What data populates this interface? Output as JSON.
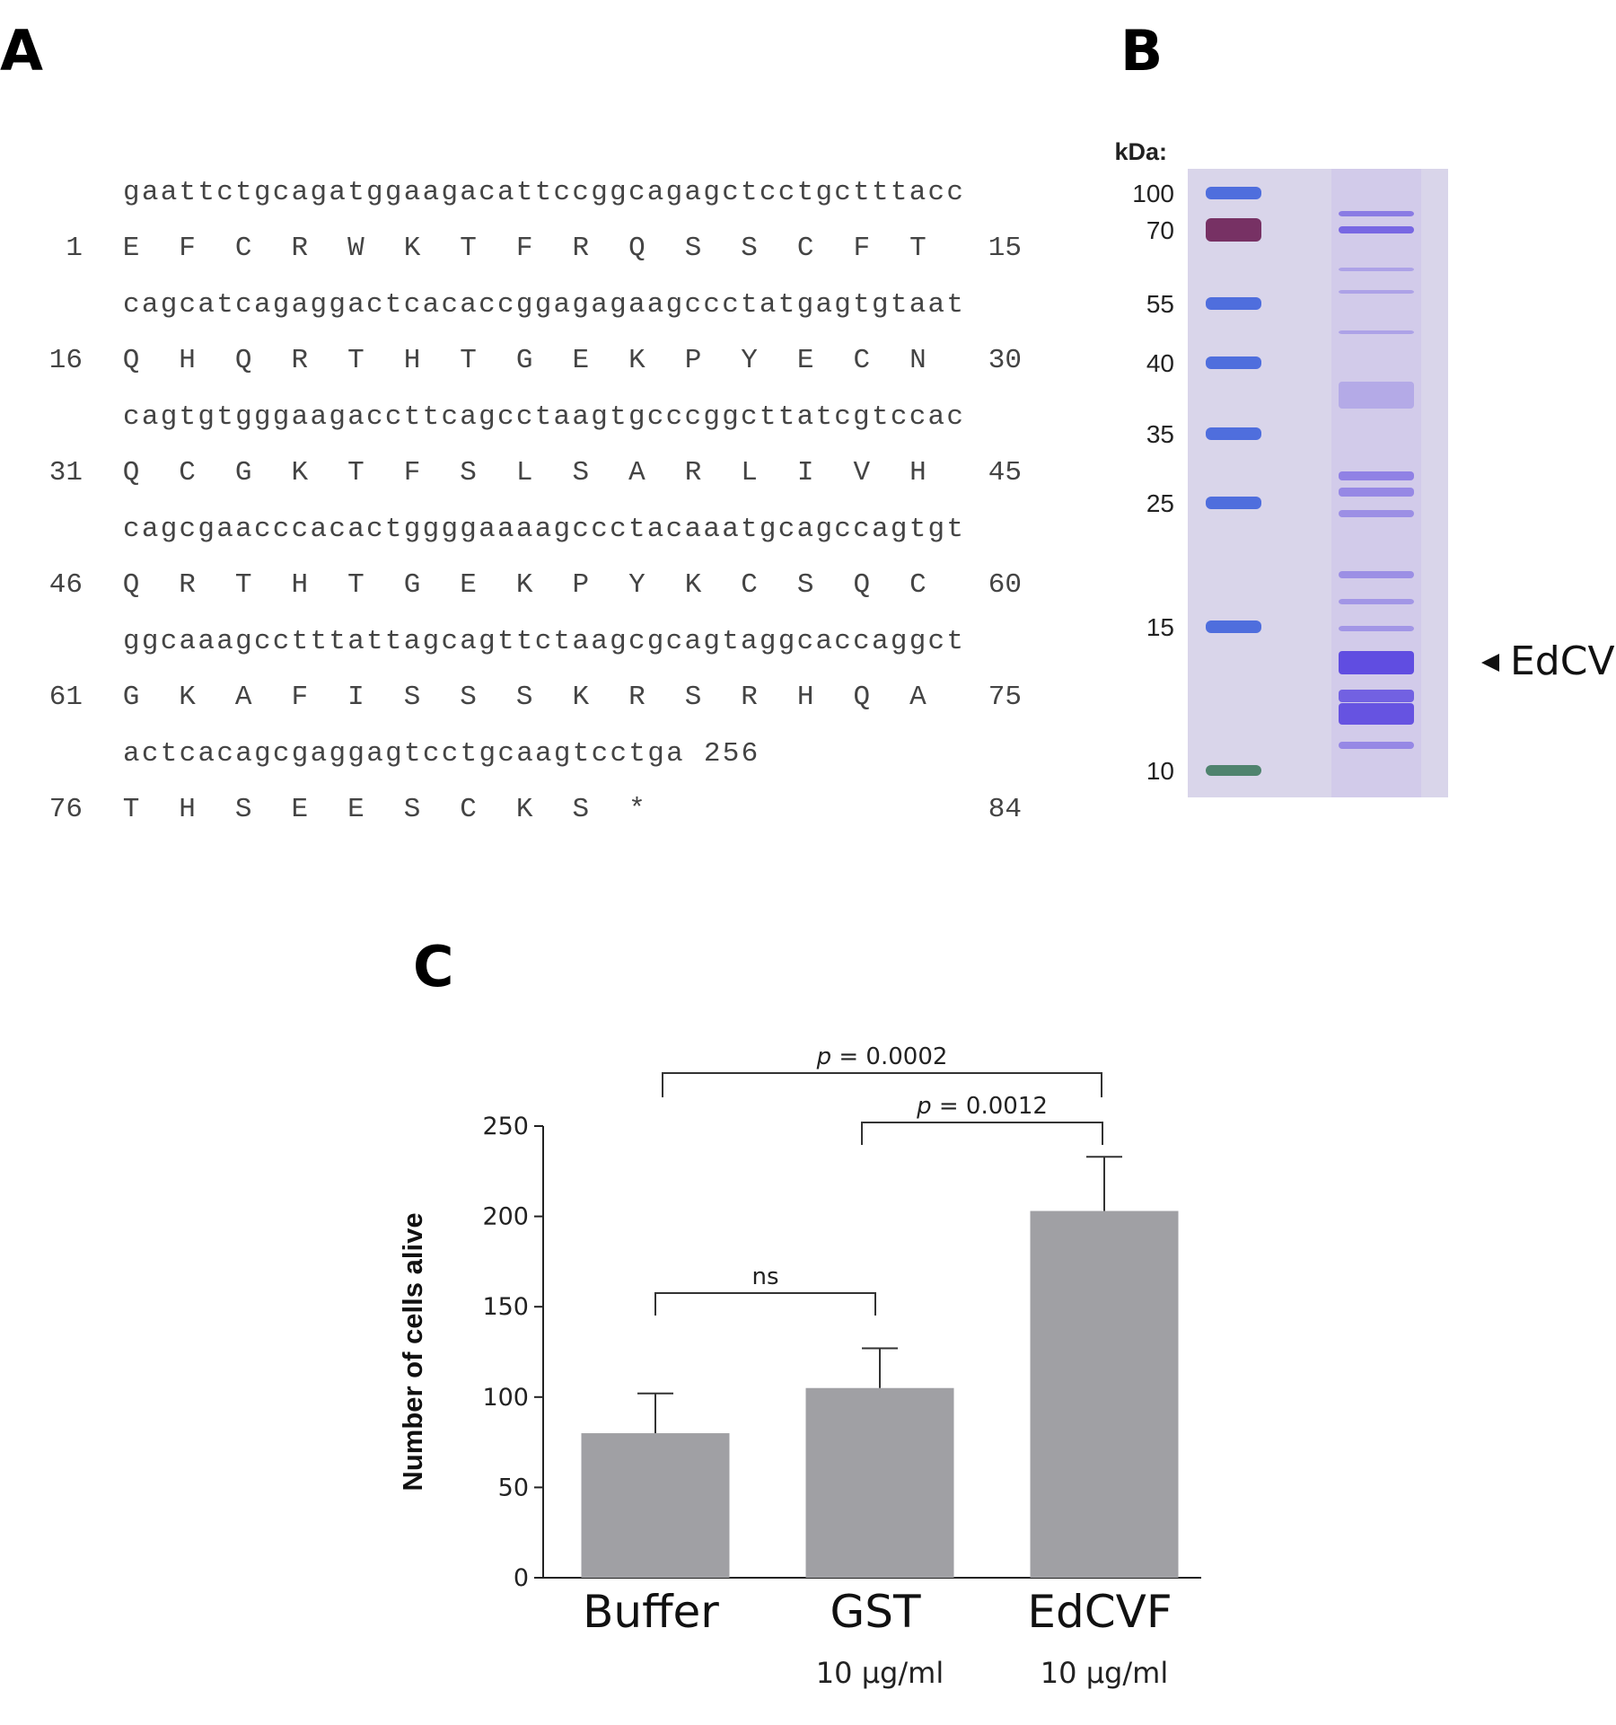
{
  "panels": {
    "a": "A",
    "b": "B",
    "c": "C"
  },
  "sequence": {
    "rows": [
      {
        "dna": "gaattctgcagatggaagacattccggcagagctcctgctttacc",
        "start": "1",
        "aa": [
          "E",
          "F",
          "C",
          "R",
          "W",
          "K",
          "T",
          "F",
          "R",
          "Q",
          "S",
          "S",
          "C",
          "F",
          "T"
        ],
        "end": "15"
      },
      {
        "dna": "cagcatcagaggactcacaccggagagaagccctatgagtgtaat",
        "start": "16",
        "aa": [
          "Q",
          "H",
          "Q",
          "R",
          "T",
          "H",
          "T",
          "G",
          "E",
          "K",
          "P",
          "Y",
          "E",
          "C",
          "N"
        ],
        "end": "30"
      },
      {
        "dna": "cagtgtgggaagaccttcagcctaagtgcccggcttatcgtccac",
        "start": "31",
        "aa": [
          "Q",
          "C",
          "G",
          "K",
          "T",
          "F",
          "S",
          "L",
          "S",
          "A",
          "R",
          "L",
          "I",
          "V",
          "H"
        ],
        "end": "45"
      },
      {
        "dna": "cagcgaacccacactggggaaaagccctacaaatgcagccagtgt",
        "start": "46",
        "aa": [
          "Q",
          "R",
          "T",
          "H",
          "T",
          "G",
          "E",
          "K",
          "P",
          "Y",
          "K",
          "C",
          "S",
          "Q",
          "C"
        ],
        "end": "60"
      },
      {
        "dna": "ggcaaagcctttattagcagttctaagcgcagtaggcaccaggct",
        "start": "61",
        "aa": [
          "G",
          "K",
          "A",
          "F",
          "I",
          "S",
          "S",
          "S",
          "K",
          "R",
          "S",
          "R",
          "H",
          "Q",
          "A"
        ],
        "end": "75"
      },
      {
        "dna": "actcacagcgaggagtcctgcaagtcctga 256",
        "start": "76",
        "aa": [
          "T",
          "H",
          "S",
          "E",
          "E",
          "S",
          "C",
          "K",
          "S",
          "*"
        ],
        "end": "84"
      }
    ]
  },
  "gel": {
    "unit_label": "kDa:",
    "markers": [
      "100",
      "70",
      "55",
      "40",
      "35",
      "25",
      "15",
      "10"
    ],
    "band_label": "EdCVF",
    "colors": {
      "background": "#d9d5ea",
      "marker_band": "#3f63dc",
      "marker_70": "#6b1f55",
      "marker_10": "#3f7a60",
      "sample_band": "#5a46e0"
    }
  },
  "chart_data": {
    "type": "bar",
    "categories": [
      "Buffer",
      "GST",
      "EdCVF"
    ],
    "sublabels": [
      "",
      "10 µg/ml",
      "10 µg/ml"
    ],
    "values": [
      80,
      105,
      203
    ],
    "errors": [
      22,
      22,
      30
    ],
    "ylabel": "Number of cells alive",
    "ylim": [
      0,
      250
    ],
    "yticks": [
      "0",
      "50",
      "100",
      "150",
      "200",
      "250"
    ],
    "bar_color": "#a0a0a4",
    "significance": [
      {
        "from": 0,
        "to": 1,
        "label": "ns"
      },
      {
        "from": 1,
        "to": 2,
        "label_italic": "p",
        "label": " = 0.0012"
      },
      {
        "from": 0,
        "to": 2,
        "label_italic": "p",
        "label": " = 0.0002"
      }
    ]
  }
}
